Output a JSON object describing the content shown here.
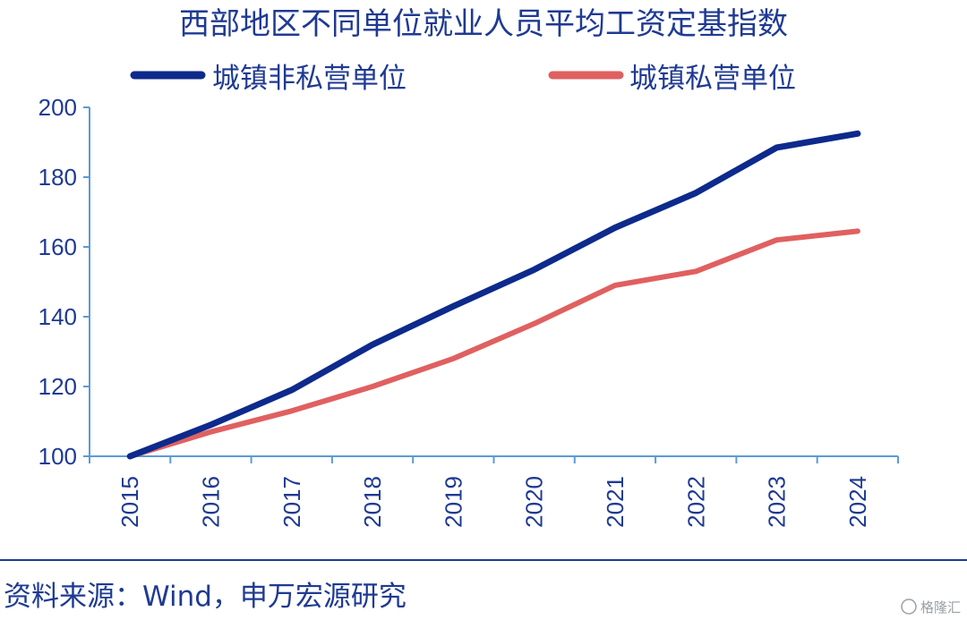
{
  "chart_data": {
    "type": "line",
    "title": "西部地区不同单位就业人员平均工资定基指数",
    "x": [
      "2015",
      "2016",
      "2017",
      "2018",
      "2019",
      "2020",
      "2021",
      "2022",
      "2023",
      "2024"
    ],
    "series": [
      {
        "name": "城镇非私营单位",
        "color": "#0d2a8c",
        "values": [
          100,
          109,
          119,
          132,
          143,
          153.5,
          165.5,
          175.5,
          188.5,
          192.5
        ]
      },
      {
        "name": "城镇私营单位",
        "color": "#e06060",
        "values": [
          100,
          107,
          113,
          120,
          128,
          138,
          149,
          153,
          162,
          164.5
        ]
      }
    ],
    "y_ticks": [
      100,
      120,
      140,
      160,
      180,
      200
    ],
    "ylim": [
      100,
      200
    ],
    "xlabel": "",
    "ylabel": "",
    "legend_position": "top",
    "grid": false,
    "axis_color": "#5b9bd5"
  },
  "source": "资料来源：Wind，申万宏源研究",
  "watermark": "格隆汇"
}
